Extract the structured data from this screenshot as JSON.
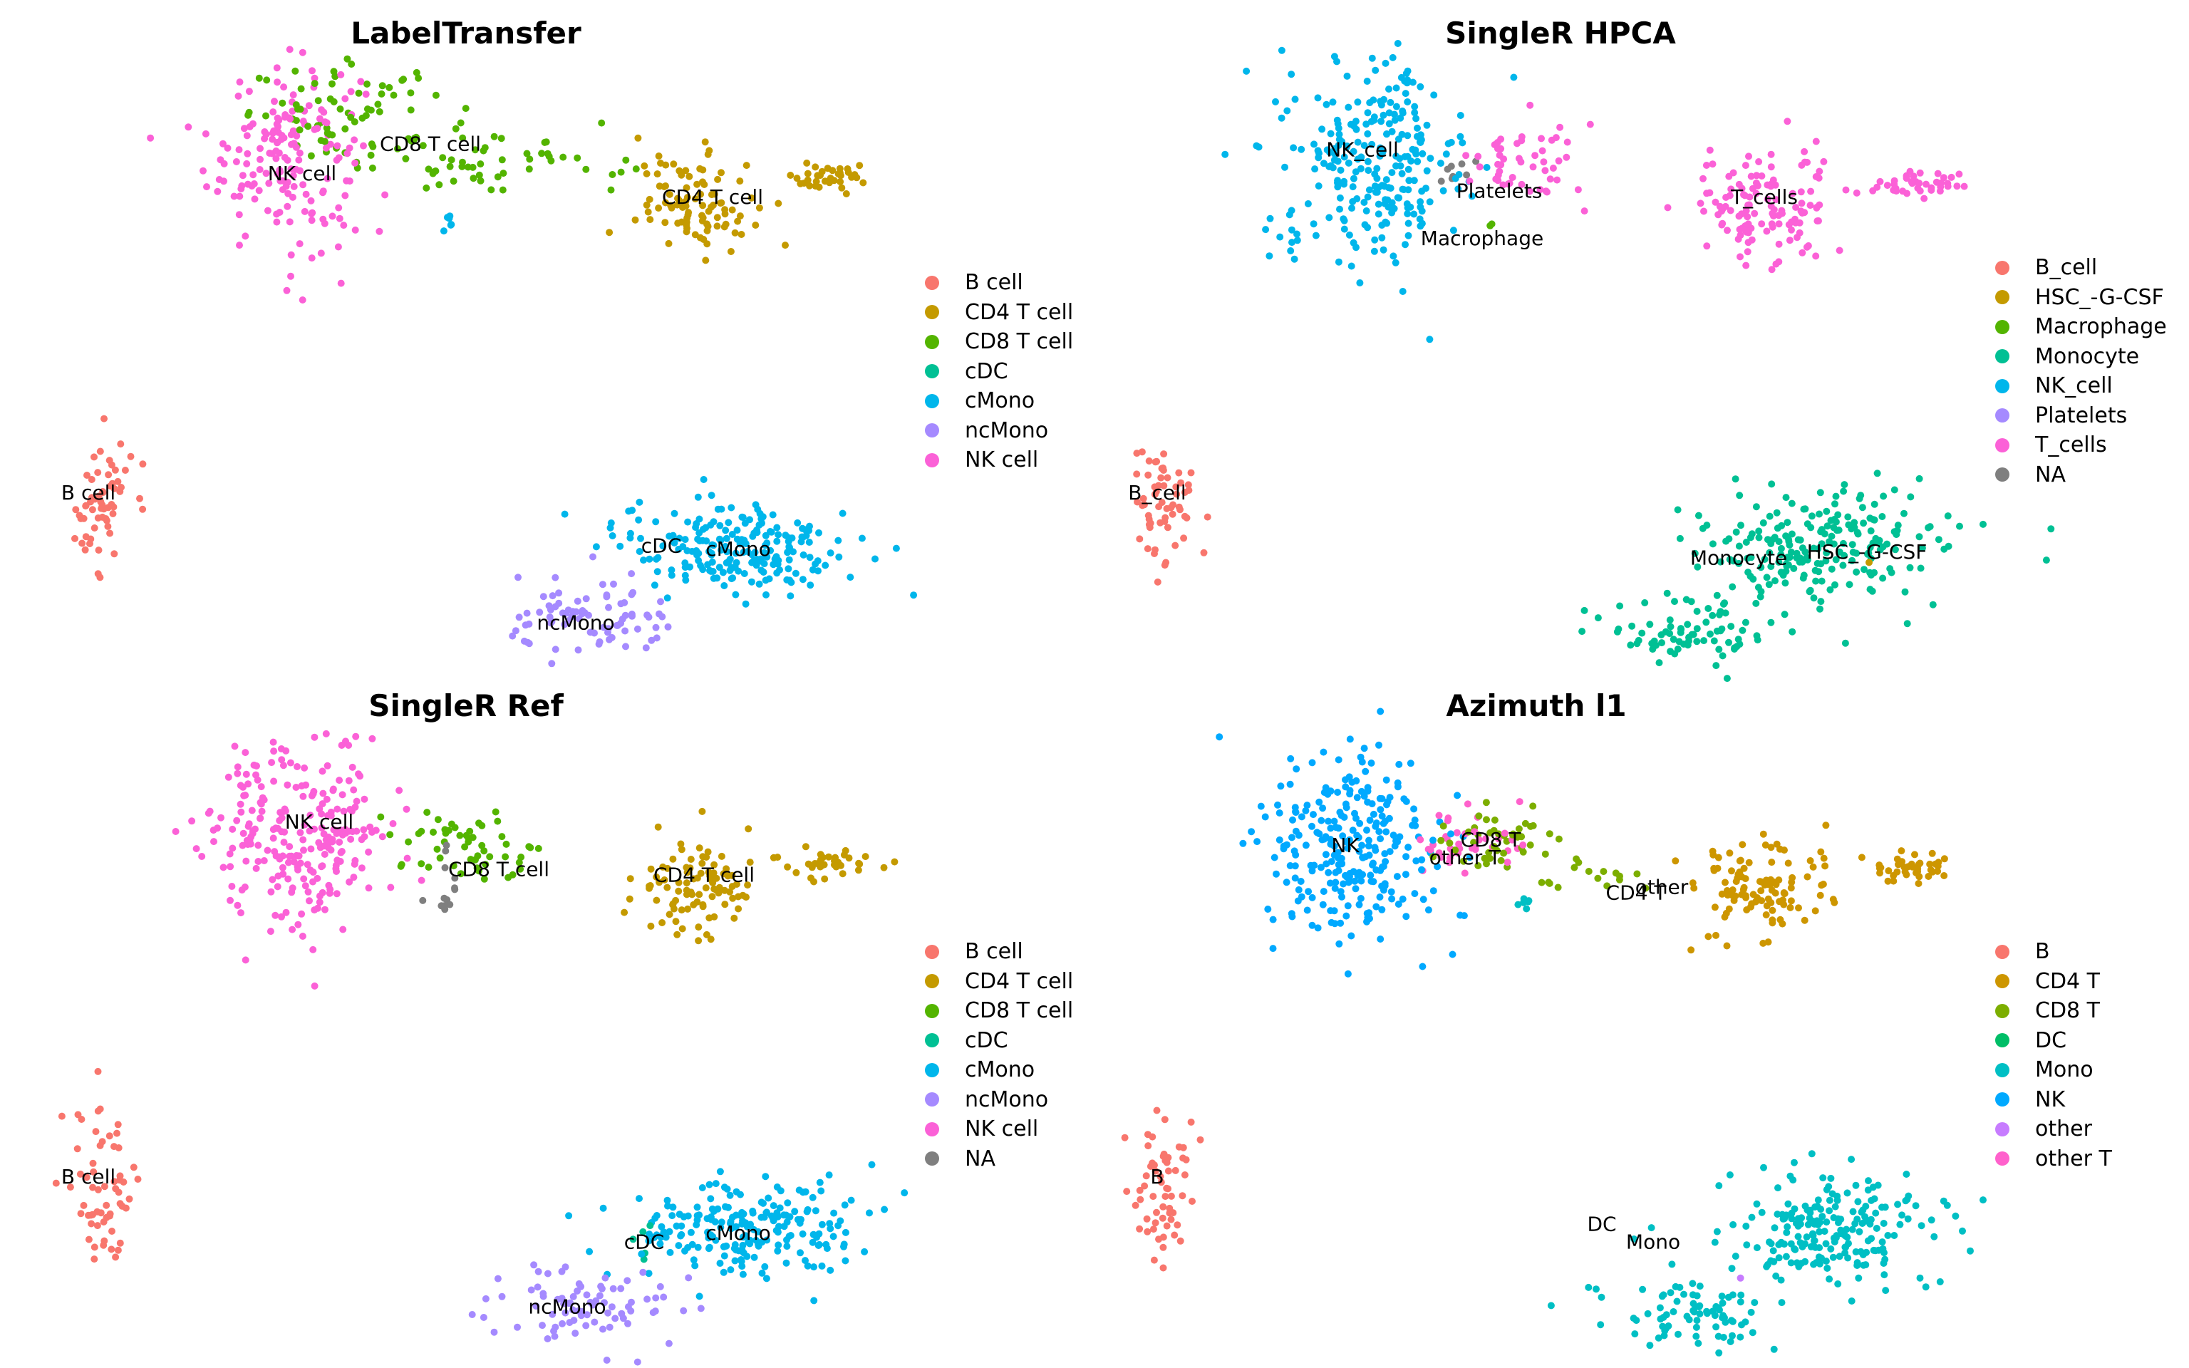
{
  "chart_data": [
    {
      "type": "scatter",
      "title": "LabelTransfer",
      "xlabel": "",
      "ylabel": "",
      "axes_visible": false,
      "xlim": [
        0,
        100
      ],
      "ylim": [
        0,
        100
      ],
      "legend_position": "right",
      "legend": [
        {
          "label": "B cell",
          "color": "#F8766D"
        },
        {
          "label": "CD4 T cell",
          "color": "#C49A00"
        },
        {
          "label": "CD8 T cell",
          "color": "#53B400"
        },
        {
          "label": "cDC",
          "color": "#00C094"
        },
        {
          "label": "cMono",
          "color": "#00B6EB"
        },
        {
          "label": "ncMono",
          "color": "#A58AFF"
        },
        {
          "label": "NK cell",
          "color": "#FB61D7"
        }
      ],
      "cluster_labels": [
        {
          "text": "NK cell",
          "x": 32,
          "y": 84
        },
        {
          "text": "CD8 T cell",
          "x": 47,
          "y": 89
        },
        {
          "text": "CD4 T cell",
          "x": 80,
          "y": 80
        },
        {
          "text": "B cell",
          "x": 7,
          "y": 30
        },
        {
          "text": "cDC",
          "x": 74,
          "y": 21
        },
        {
          "text": "cMono",
          "x": 83,
          "y": 20.5
        },
        {
          "text": "ncMono",
          "x": 64,
          "y": 8
        }
      ],
      "clusters": [
        {
          "label": "NK cell",
          "cx": 30,
          "cy": 87,
          "sx": 4.5,
          "sy": 8,
          "n": 170
        },
        {
          "label": "CD8 T cell",
          "cx": 38,
          "cy": 94,
          "sx": 6,
          "sy": 4,
          "n": 70
        },
        {
          "label": "CD8 T cell",
          "cx": 55,
          "cy": 86,
          "sx": 7,
          "sy": 3,
          "n": 55
        },
        {
          "label": "CD4 T cell",
          "cx": 78,
          "cy": 79,
          "sx": 3.5,
          "sy": 4,
          "n": 95
        },
        {
          "label": "CD4 T cell",
          "cx": 94,
          "cy": 83,
          "sx": 2.5,
          "sy": 1.3,
          "n": 35
        },
        {
          "label": "cMono",
          "cx": 49,
          "cy": 76,
          "sx": 0.4,
          "sy": 0.8,
          "n": 6
        },
        {
          "label": "B cell",
          "cx": 8.5,
          "cy": 28,
          "sx": 1.8,
          "sy": 6,
          "n": 60
        },
        {
          "label": "cMono",
          "cx": 83,
          "cy": 21,
          "sx": 7,
          "sy": 4,
          "n": 210
        },
        {
          "label": "ncMono",
          "cx": 66,
          "cy": 8,
          "sx": 5,
          "sy": 3.5,
          "n": 80
        }
      ]
    },
    {
      "type": "scatter",
      "title": "SingleR HPCA",
      "xlabel": "",
      "ylabel": "",
      "axes_visible": false,
      "xlim": [
        0,
        100
      ],
      "ylim": [
        0,
        100
      ],
      "legend_position": "right",
      "legend": [
        {
          "label": "B_cell",
          "color": "#F8766D"
        },
        {
          "label": "HSC_-G-CSF",
          "color": "#C49A00"
        },
        {
          "label": "Macrophage",
          "color": "#53B400"
        },
        {
          "label": "Monocyte",
          "color": "#00C094"
        },
        {
          "label": "NK_cell",
          "color": "#00B6EB"
        },
        {
          "label": "Platelets",
          "color": "#A58AFF"
        },
        {
          "label": "T_cells",
          "color": "#FB61D7"
        },
        {
          "label": "NA",
          "color": "#7F7F7F"
        }
      ],
      "cluster_labels": [
        {
          "text": "NK_cell",
          "x": 28,
          "y": 88
        },
        {
          "text": "Platelets",
          "x": 44,
          "y": 81
        },
        {
          "text": "T_cells",
          "x": 75,
          "y": 80
        },
        {
          "text": "Macrophage",
          "x": 42,
          "y": 73
        },
        {
          "text": "B_cell",
          "x": 4,
          "y": 30
        },
        {
          "text": "Monocyte",
          "x": 72,
          "y": 19
        },
        {
          "text": "HSC_-G-CSF",
          "x": 87,
          "y": 20
        }
      ],
      "clusters": [
        {
          "label": "NK_cell",
          "cx": 29,
          "cy": 86,
          "sx": 5.5,
          "sy": 8.5,
          "n": 260
        },
        {
          "label": "NA",
          "cx": 39,
          "cy": 84,
          "sx": 1.2,
          "sy": 1.2,
          "n": 8
        },
        {
          "label": "Macrophage",
          "cx": 43,
          "cy": 75,
          "sx": 0.4,
          "sy": 0.4,
          "n": 2
        },
        {
          "label": "T_cells",
          "cx": 47,
          "cy": 86,
          "sx": 3.5,
          "sy": 4,
          "n": 50
        },
        {
          "label": "T_cells",
          "cx": 75,
          "cy": 78,
          "sx": 4.5,
          "sy": 4.5,
          "n": 130
        },
        {
          "label": "T_cells",
          "cx": 93,
          "cy": 82,
          "sx": 3,
          "sy": 1.3,
          "n": 40
        },
        {
          "label": "B_cell",
          "cx": 4.5,
          "cy": 28,
          "sx": 1.8,
          "sy": 6,
          "n": 60
        },
        {
          "label": "Monocyte",
          "cx": 82,
          "cy": 21,
          "sx": 7,
          "sy": 4.5,
          "n": 210
        },
        {
          "label": "Monocyte",
          "cx": 66,
          "cy": 7,
          "sx": 5,
          "sy": 3,
          "n": 80
        },
        {
          "label": "HSC_-G-CSF",
          "cx": 88,
          "cy": 18,
          "sx": 0.3,
          "sy": 0.3,
          "n": 1
        }
      ]
    },
    {
      "type": "scatter",
      "title": "SingleR Ref",
      "xlabel": "",
      "ylabel": "",
      "axes_visible": false,
      "xlim": [
        0,
        100
      ],
      "ylim": [
        0,
        100
      ],
      "legend_position": "right",
      "legend": [
        {
          "label": "B cell",
          "color": "#F8766D"
        },
        {
          "label": "CD4 T cell",
          "color": "#C49A00"
        },
        {
          "label": "CD8 T cell",
          "color": "#53B400"
        },
        {
          "label": "cDC",
          "color": "#00C094"
        },
        {
          "label": "cMono",
          "color": "#00B6EB"
        },
        {
          "label": "ncMono",
          "color": "#A58AFF"
        },
        {
          "label": "NK cell",
          "color": "#FB61D7"
        },
        {
          "label": "NA",
          "color": "#7F7F7F"
        }
      ],
      "cluster_labels": [
        {
          "text": "NK cell",
          "x": 34,
          "y": 90
        },
        {
          "text": "CD8 T cell",
          "x": 55,
          "y": 82
        },
        {
          "text": "CD4 T cell",
          "x": 79,
          "y": 81
        },
        {
          "text": "B cell",
          "x": 7,
          "y": 30
        },
        {
          "text": "cDC",
          "x": 72,
          "y": 19
        },
        {
          "text": "cMono",
          "x": 83,
          "y": 20.5
        },
        {
          "text": "ncMono",
          "x": 63,
          "y": 8
        }
      ],
      "clusters": [
        {
          "label": "NK cell",
          "cx": 32,
          "cy": 88,
          "sx": 5.5,
          "sy": 8,
          "n": 250
        },
        {
          "label": "CD8 T cell",
          "cx": 52,
          "cy": 86,
          "sx": 4,
          "sy": 3.5,
          "n": 55
        },
        {
          "label": "NA",
          "cx": 49,
          "cy": 80,
          "sx": 3,
          "sy": 3,
          "n": 8
        },
        {
          "label": "CD4 T cell",
          "cx": 78,
          "cy": 79,
          "sx": 3.5,
          "sy": 4,
          "n": 95
        },
        {
          "label": "CD4 T cell",
          "cx": 94,
          "cy": 83,
          "sx": 2.5,
          "sy": 1.3,
          "n": 35
        },
        {
          "label": "NA",
          "cx": 49,
          "cy": 76,
          "sx": 0.4,
          "sy": 0.8,
          "n": 5
        },
        {
          "label": "B cell",
          "cx": 8.5,
          "cy": 28,
          "sx": 1.8,
          "sy": 6,
          "n": 60
        },
        {
          "label": "cMono",
          "cx": 83,
          "cy": 21,
          "sx": 7,
          "sy": 4,
          "n": 210
        },
        {
          "label": "cDC",
          "cx": 72,
          "cy": 19,
          "sx": 1.2,
          "sy": 1.5,
          "n": 5
        },
        {
          "label": "ncMono",
          "cx": 65,
          "cy": 8,
          "sx": 5,
          "sy": 3.5,
          "n": 80
        }
      ]
    },
    {
      "type": "scatter",
      "title": "Azimuth l1",
      "xlabel": "",
      "ylabel": "",
      "axes_visible": false,
      "xlim": [
        0,
        100
      ],
      "ylim": [
        0,
        100
      ],
      "legend_position": "right",
      "legend": [
        {
          "label": "B",
          "color": "#F8766D"
        },
        {
          "label": "CD4 T",
          "color": "#CD9600"
        },
        {
          "label": "CD8 T",
          "color": "#7CAE00"
        },
        {
          "label": "DC",
          "color": "#00BE67"
        },
        {
          "label": "Mono",
          "color": "#00BFC4"
        },
        {
          "label": "NK",
          "color": "#00A9FF"
        },
        {
          "label": "other",
          "color": "#C77CFF"
        },
        {
          "label": "other T",
          "color": "#FF61CC"
        }
      ],
      "cluster_labels": [
        {
          "text": "NK",
          "x": 26,
          "y": 86
        },
        {
          "text": "CD8 T",
          "x": 43,
          "y": 87
        },
        {
          "text": "other T",
          "x": 40,
          "y": 84
        },
        {
          "text": "CD4 T",
          "x": 60,
          "y": 78
        },
        {
          "text": "other",
          "x": 63,
          "y": 79
        },
        {
          "text": "B",
          "x": 4,
          "y": 30
        },
        {
          "text": "DC",
          "x": 56,
          "y": 22
        },
        {
          "text": "Mono",
          "x": 62,
          "y": 19
        }
      ],
      "clusters": [
        {
          "label": "NK",
          "cx": 27,
          "cy": 86,
          "sx": 5.5,
          "sy": 8.5,
          "n": 260
        },
        {
          "label": "other T",
          "cx": 40,
          "cy": 87,
          "sx": 3.5,
          "sy": 3,
          "n": 40
        },
        {
          "label": "CD8 T",
          "cx": 44,
          "cy": 87,
          "sx": 3.5,
          "sy": 3,
          "n": 45
        },
        {
          "label": "CD8 T",
          "cx": 55,
          "cy": 80,
          "sx": 4,
          "sy": 1.5,
          "n": 15
        },
        {
          "label": "CD4 T",
          "cx": 74,
          "cy": 79,
          "sx": 4,
          "sy": 4.5,
          "n": 110
        },
        {
          "label": "CD4 T",
          "cx": 92,
          "cy": 82,
          "sx": 2.8,
          "sy": 1.3,
          "n": 40
        },
        {
          "label": "Mono",
          "cx": 47,
          "cy": 76,
          "sx": 0.4,
          "sy": 0.8,
          "n": 6
        },
        {
          "label": "B",
          "cx": 4.5,
          "cy": 28,
          "sx": 1.8,
          "sy": 6,
          "n": 60
        },
        {
          "label": "Mono",
          "cx": 82,
          "cy": 21,
          "sx": 7,
          "sy": 4.5,
          "n": 210
        },
        {
          "label": "Mono",
          "cx": 66,
          "cy": 7,
          "sx": 5,
          "sy": 3,
          "n": 80
        },
        {
          "label": "other",
          "cx": 72,
          "cy": 13,
          "sx": 0.3,
          "sy": 0.3,
          "n": 1
        }
      ]
    }
  ]
}
